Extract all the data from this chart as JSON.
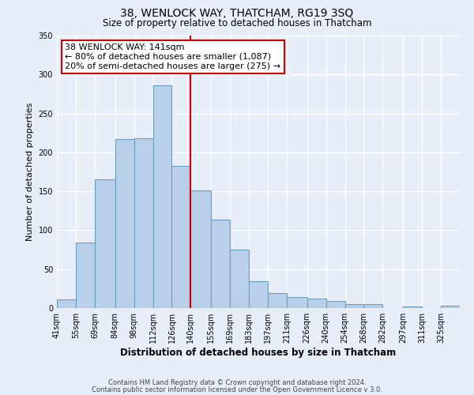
{
  "title": "38, WENLOCK WAY, THATCHAM, RG19 3SQ",
  "subtitle": "Size of property relative to detached houses in Thatcham",
  "xlabel": "Distribution of detached houses by size in Thatcham",
  "ylabel": "Number of detached properties",
  "bin_labels": [
    "41sqm",
    "55sqm",
    "69sqm",
    "84sqm",
    "98sqm",
    "112sqm",
    "126sqm",
    "140sqm",
    "155sqm",
    "169sqm",
    "183sqm",
    "197sqm",
    "211sqm",
    "226sqm",
    "240sqm",
    "254sqm",
    "268sqm",
    "282sqm",
    "297sqm",
    "311sqm",
    "325sqm"
  ],
  "bar_values": [
    11,
    84,
    165,
    217,
    218,
    286,
    183,
    151,
    114,
    75,
    35,
    19,
    14,
    12,
    9,
    5,
    5,
    0,
    2,
    0,
    3
  ],
  "bar_color": "#b8d0ea",
  "bar_edge_color": "#6a9fc0",
  "background_color": "#e8eef8",
  "grid_color": "#ffffff",
  "vline_x": 140,
  "vline_color": "#cc0000",
  "annotation_title": "38 WENLOCK WAY: 141sqm",
  "annotation_line1": "← 80% of detached houses are smaller (1,087)",
  "annotation_line2": "20% of semi-detached houses are larger (275) →",
  "annotation_box_color": "#ffffff",
  "annotation_box_edge": "#cc0000",
  "ylim": [
    0,
    350
  ],
  "yticks": [
    0,
    50,
    100,
    150,
    200,
    250,
    300,
    350
  ],
  "footer1": "Contains HM Land Registry data © Crown copyright and database right 2024.",
  "footer2": "Contains public sector information licensed under the Open Government Licence v 3.0.",
  "bin_edges": [
    41,
    55,
    69,
    84,
    98,
    112,
    126,
    140,
    155,
    169,
    183,
    197,
    211,
    226,
    240,
    254,
    268,
    282,
    297,
    311,
    325,
    339
  ]
}
